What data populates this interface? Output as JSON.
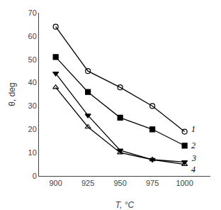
{
  "chart_data": {
    "type": "line",
    "x": [
      900,
      925,
      950,
      975,
      1000
    ],
    "series": [
      {
        "name": "1",
        "values": [
          64,
          45,
          38,
          30,
          19
        ],
        "color": "black",
        "marker": "circle-open"
      },
      {
        "name": "2",
        "values": [
          51,
          36,
          25,
          20,
          13
        ],
        "color": "black",
        "marker": "square"
      },
      {
        "name": "3",
        "values": [
          44,
          26,
          11,
          7,
          6
        ],
        "color": "black",
        "marker": "triangle-down"
      },
      {
        "name": "4",
        "values": [
          38,
          21,
          10,
          7,
          5
        ],
        "color": "black",
        "marker": "triangle-up-open"
      }
    ],
    "x_label": "T, °C",
    "y_label": "θ, deg",
    "xlim": [
      887,
      1020
    ],
    "ylim": [
      0,
      70
    ],
    "xticks": [
      900,
      925,
      950,
      975,
      1000
    ],
    "yticks": [
      0,
      10,
      20,
      30,
      40,
      50,
      60,
      70
    ],
    "grid": false
  }
}
